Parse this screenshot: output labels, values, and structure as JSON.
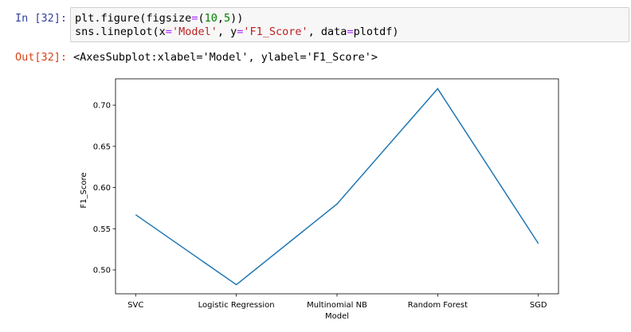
{
  "cell": {
    "in_prompt": "In [32]:",
    "out_prompt": "Out[32]:",
    "code_lines": [
      [
        "plt.figure(figsize",
        "=",
        "(",
        "10",
        ",",
        "5",
        "))"
      ],
      [
        "sns.lineplot(x",
        "=",
        "'Model'",
        ", y",
        "=",
        "'F1_Score'",
        ", data",
        "=",
        "plotdf)"
      ]
    ],
    "output_text": "<AxesSubplot:xlabel='Model', ylabel='F1_Score'>"
  },
  "chart_data": {
    "type": "line",
    "categories": [
      "SVC",
      "Logistic Regression",
      "Multinomial NB",
      "Random Forest",
      "SGD"
    ],
    "series": [
      {
        "values": [
          0.567,
          0.482,
          0.58,
          0.72,
          0.532
        ],
        "color": "#1f77b4"
      }
    ],
    "xlabel": "Model",
    "ylabel": "F1_Score",
    "ylim": [
      0.471,
      0.732
    ],
    "yticks": [
      0.5,
      0.55,
      0.6,
      0.65,
      0.7
    ],
    "ytick_labels": [
      "0.50",
      "0.55",
      "0.60",
      "0.65",
      "0.70"
    ],
    "grid": false,
    "legend": "none"
  }
}
